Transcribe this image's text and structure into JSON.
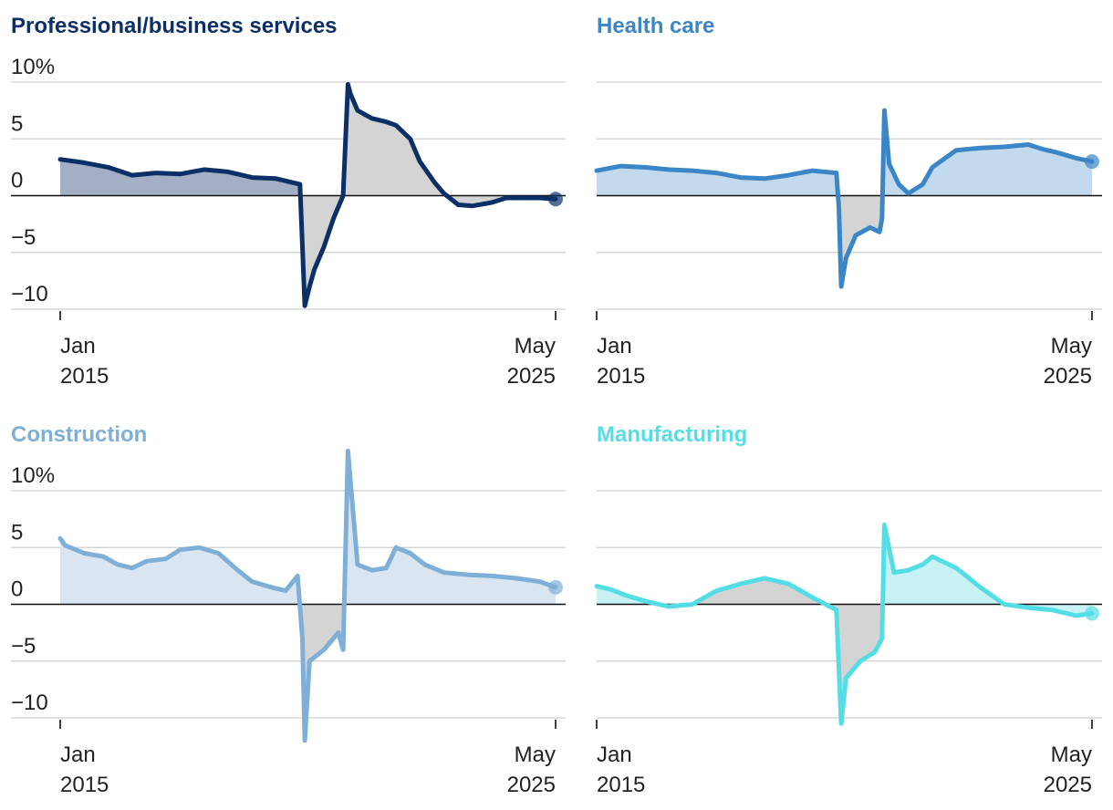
{
  "chart_data": [
    {
      "type": "area",
      "title": "Professional/business services",
      "color": "#0b2f66",
      "fill": "#a3afc4",
      "ylim": [
        -10,
        10
      ],
      "y_ticks": [
        "10%",
        "5",
        "0",
        "−5",
        "−10"
      ],
      "x_start": [
        "Jan",
        "2015"
      ],
      "x_end": [
        "May",
        "2025"
      ],
      "x": [
        2015.0,
        2015.5,
        2016.0,
        2016.5,
        2017.0,
        2017.5,
        2018.0,
        2018.5,
        2019.0,
        2019.5,
        2020.0,
        2020.1,
        2020.2,
        2020.3,
        2020.5,
        2020.7,
        2020.9,
        2021.0,
        2021.05,
        2021.2,
        2021.5,
        2021.8,
        2022.0,
        2022.3,
        2022.5,
        2022.8,
        2023.0,
        2023.3,
        2023.6,
        2024.0,
        2024.3,
        2024.6,
        2025.0,
        2025.33
      ],
      "values": [
        3.2,
        2.9,
        2.5,
        1.8,
        2.0,
        1.9,
        2.3,
        2.1,
        1.6,
        1.5,
        1.0,
        -9.7,
        -8.0,
        -6.5,
        -4.5,
        -2.0,
        0.0,
        9.8,
        9.0,
        7.5,
        6.8,
        6.5,
        6.2,
        5.0,
        3.0,
        1.2,
        0.2,
        -0.8,
        -0.9,
        -0.6,
        -0.2,
        -0.2,
        -0.2,
        -0.3
      ]
    },
    {
      "type": "area",
      "title": "Health care",
      "color": "#3b86c6",
      "fill": "#c3d9ee",
      "ylim": [
        -10,
        10
      ],
      "y_ticks": [
        "",
        "",
        "",
        "",
        ""
      ],
      "x_start": [
        "Jan",
        "2015"
      ],
      "x_end": [
        "May",
        "2025"
      ],
      "x": [
        2015.0,
        2015.5,
        2016.0,
        2016.5,
        2017.0,
        2017.5,
        2018.0,
        2018.5,
        2019.0,
        2019.5,
        2020.0,
        2020.05,
        2020.1,
        2020.2,
        2020.4,
        2020.7,
        2020.9,
        2020.95,
        2021.0,
        2021.1,
        2021.3,
        2021.5,
        2021.8,
        2022.0,
        2022.5,
        2023.0,
        2023.5,
        2024.0,
        2024.3,
        2024.6,
        2025.0,
        2025.33
      ],
      "values": [
        2.2,
        2.6,
        2.5,
        2.3,
        2.2,
        2.0,
        1.6,
        1.5,
        1.8,
        2.2,
        2.0,
        -1.0,
        -8.0,
        -5.5,
        -3.5,
        -2.8,
        -3.2,
        -2.0,
        7.5,
        2.8,
        1.0,
        0.2,
        1.0,
        2.5,
        4.0,
        4.2,
        4.3,
        4.5,
        4.1,
        3.8,
        3.3,
        3.0
      ]
    },
    {
      "type": "area",
      "title": "Construction",
      "color": "#7fafd6",
      "fill": "#d9e6f2",
      "ylim": [
        -10,
        10
      ],
      "y_ticks": [
        "10%",
        "5",
        "0",
        "−5",
        "−10"
      ],
      "x_start": [
        "Jan",
        "2015"
      ],
      "x_end": [
        "May",
        "2025"
      ],
      "x": [
        2015.0,
        2015.1,
        2015.5,
        2015.9,
        2016.2,
        2016.5,
        2016.8,
        2017.2,
        2017.5,
        2017.9,
        2018.3,
        2018.7,
        2019.0,
        2019.4,
        2019.7,
        2019.95,
        2020.05,
        2020.1,
        2020.2,
        2020.5,
        2020.8,
        2020.9,
        2021.0,
        2021.2,
        2021.5,
        2021.8,
        2022.0,
        2022.3,
        2022.6,
        2023.0,
        2023.5,
        2024.0,
        2024.5,
        2025.0,
        2025.33
      ],
      "values": [
        5.8,
        5.2,
        4.5,
        4.2,
        3.5,
        3.2,
        3.8,
        4.0,
        4.8,
        5.0,
        4.5,
        3.0,
        2.0,
        1.5,
        1.2,
        2.5,
        -3.0,
        -12.0,
        -5.0,
        -4.0,
        -2.5,
        -4.0,
        13.5,
        3.5,
        3.0,
        3.2,
        5.0,
        4.5,
        3.5,
        2.8,
        2.6,
        2.5,
        2.3,
        2.0,
        1.5
      ]
    },
    {
      "type": "area",
      "title": "Manufacturing",
      "color": "#55dde6",
      "fill": "#c8f2f4",
      "ylim": [
        -10,
        10
      ],
      "y_ticks": [
        "",
        "",
        "",
        "",
        ""
      ],
      "x_start": [
        "Jan",
        "2015"
      ],
      "x_end": [
        "May",
        "2025"
      ],
      "x": [
        2015.0,
        2015.3,
        2015.6,
        2016.0,
        2016.5,
        2017.0,
        2017.5,
        2018.0,
        2018.5,
        2019.0,
        2019.5,
        2020.0,
        2020.1,
        2020.2,
        2020.5,
        2020.8,
        2020.95,
        2021.0,
        2021.2,
        2021.5,
        2021.8,
        2022.0,
        2022.5,
        2023.0,
        2023.5,
        2024.0,
        2024.5,
        2025.0,
        2025.33
      ],
      "values": [
        1.6,
        1.3,
        0.8,
        0.3,
        -0.2,
        0.0,
        1.2,
        1.8,
        2.3,
        1.8,
        0.6,
        -0.5,
        -10.5,
        -6.5,
        -5.0,
        -4.2,
        -3.0,
        7.0,
        2.8,
        3.0,
        3.5,
        4.2,
        3.2,
        1.5,
        0.0,
        -0.3,
        -0.5,
        -1.0,
        -0.8
      ]
    }
  ]
}
